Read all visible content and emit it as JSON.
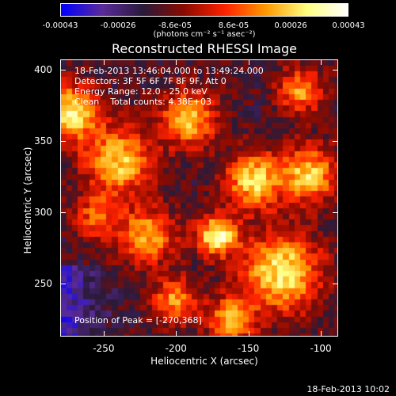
{
  "colorbar": {
    "ticks": [
      "-0.00043",
      "-0.00026",
      "-8.6e-05",
      "8.6e-05",
      "0.00026",
      "0.00043"
    ],
    "units": "(photons cm⁻² s⁻¹ asec⁻²)"
  },
  "title": "Reconstructed RHESSI Image",
  "info": {
    "line1": "18-Feb-2013 13:46:04.000 to 13:49:24.000",
    "line2": "Detectors: 3F 5F 6F 7F 8F 9F, Att 0",
    "line3": "Energy Range: 12.0 - 25.0 keV",
    "line4": "Clean    Total counts: 4.38E+03"
  },
  "peak_text": "Position of Peak = [-270,368]",
  "timestamp": "18-Feb-2013 10:02",
  "chart_data": {
    "type": "heatmap",
    "title": "Reconstructed RHESSI Image",
    "xlabel": "Heliocentric X (arcsec)",
    "ylabel": "Heliocentric Y (arcsec)",
    "xlim": [
      -280,
      -88
    ],
    "ylim": [
      213,
      407
    ],
    "xticks": [
      -250,
      -200,
      -150,
      -100
    ],
    "yticks": [
      250,
      300,
      350,
      400
    ],
    "colorbar_range": [
      -0.00043,
      0.00043
    ],
    "colormap": [
      "#0000ff",
      "#5b2b9a",
      "#2a1a3a",
      "#8a0a00",
      "#ff2200",
      "#ff9900",
      "#ffff80",
      "#ffffff"
    ],
    "peak_position": [
      -270,
      368
    ]
  }
}
